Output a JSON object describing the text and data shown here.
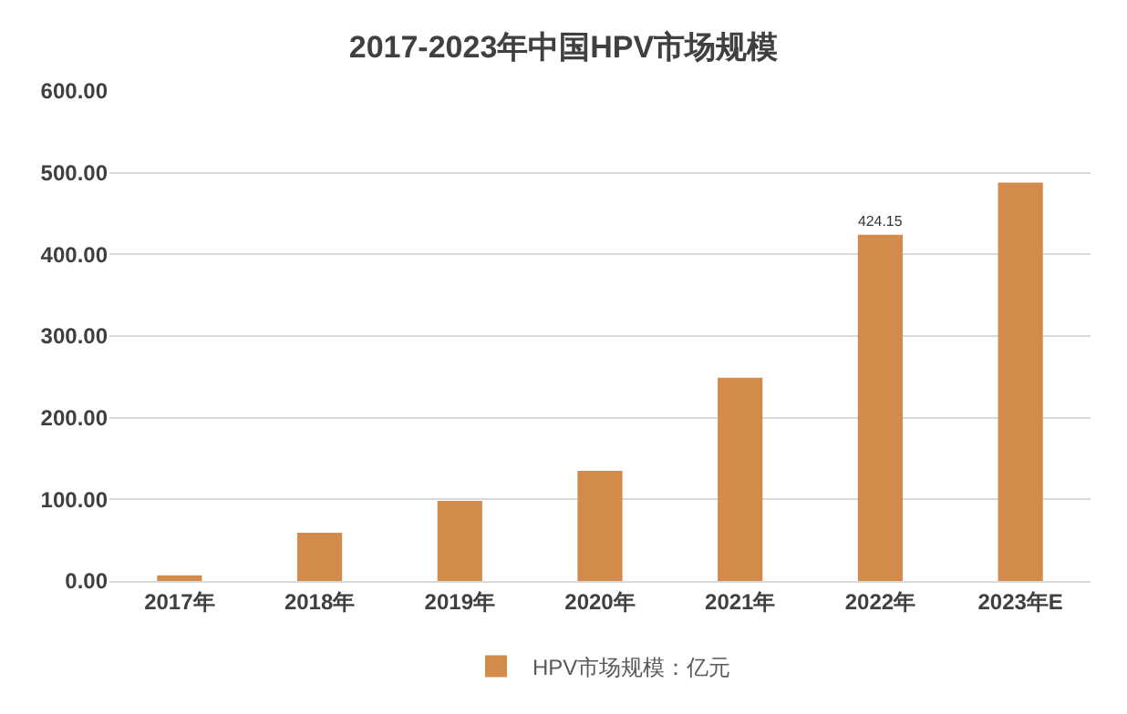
{
  "chart_data": {
    "type": "bar",
    "title": "2017-2023年中国HPV市场规模",
    "categories": [
      "2017年",
      "2018年",
      "2019年",
      "2020年",
      "2021年",
      "2022年",
      "2023年E"
    ],
    "series": [
      {
        "name": "HPV市场规模：亿元",
        "color": "#d38b4c",
        "values": [
          7,
          59,
          98,
          135,
          249,
          424.15,
          488
        ],
        "value_labels": [
          null,
          null,
          null,
          null,
          null,
          "424.15",
          null
        ]
      }
    ],
    "ylim": [
      0,
      600
    ],
    "yticks": [
      {
        "value": 0,
        "label": "0.00"
      },
      {
        "value": 100,
        "label": "100.00"
      },
      {
        "value": 200,
        "label": "200.00"
      },
      {
        "value": 300,
        "label": "300.00"
      },
      {
        "value": 400,
        "label": "400.00"
      },
      {
        "value": 500,
        "label": "500.00"
      },
      {
        "value": 600,
        "label": "600.00"
      }
    ],
    "grid": "y",
    "legend": "bottom"
  }
}
